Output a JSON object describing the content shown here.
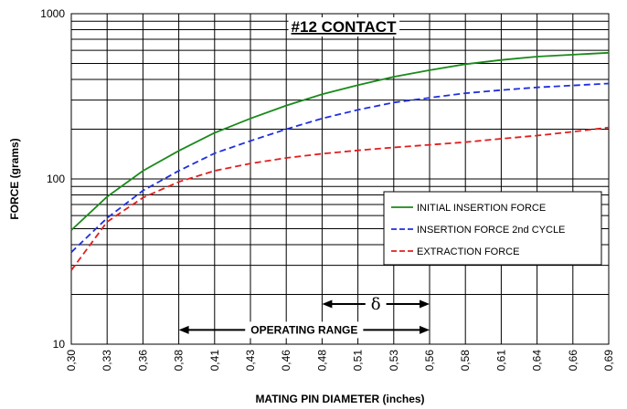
{
  "chart_data": {
    "type": "line",
    "title": "#12 CONTACT",
    "xlabel": "MATING PIN  DIAMETER (inches)",
    "ylabel": "FORCE (grams)",
    "yscale": "log",
    "ylim": [
      10,
      1000
    ],
    "y_tick_labels": [
      "1000",
      "100",
      "10"
    ],
    "categories": [
      "0,30",
      "0,33",
      "0,36",
      "0,38",
      "0,41",
      "0,43",
      "0,46",
      "0,48",
      "0,51",
      "0,53",
      "0,56",
      "0,58",
      "0,61",
      "0,64",
      "0,66",
      "0,69"
    ],
    "legend_position": "right-middle",
    "series": [
      {
        "name": "INITIAL INSERTION FORCE",
        "color": "#1a8a1a",
        "dash": "solid",
        "values": [
          49,
          78,
          112,
          148,
          190,
          232,
          278,
          325,
          370,
          415,
          455,
          495,
          525,
          550,
          565,
          580
        ]
      },
      {
        "name": "INSERTION FORCE 2nd CYCLE",
        "color": "#1f2fe0",
        "dash": "dashed",
        "values": [
          36,
          58,
          85,
          112,
          143,
          170,
          200,
          232,
          262,
          290,
          310,
          330,
          345,
          358,
          368,
          378
        ]
      },
      {
        "name": "EXTRACTION FORCE",
        "color": "#e21e1e",
        "dash": "dashed",
        "values": [
          28,
          55,
          77,
          96,
          112,
          124,
          134,
          142,
          149,
          155,
          161,
          167,
          175,
          183,
          193,
          205
        ]
      }
    ],
    "annotations": [
      {
        "text": "OPERATING RANGE",
        "from_category": "0,38",
        "to_category": "0,56",
        "y": 12.2
      },
      {
        "text": "δ",
        "from_category": "0,48",
        "to_category": "0,56",
        "y": 17.5
      }
    ]
  }
}
